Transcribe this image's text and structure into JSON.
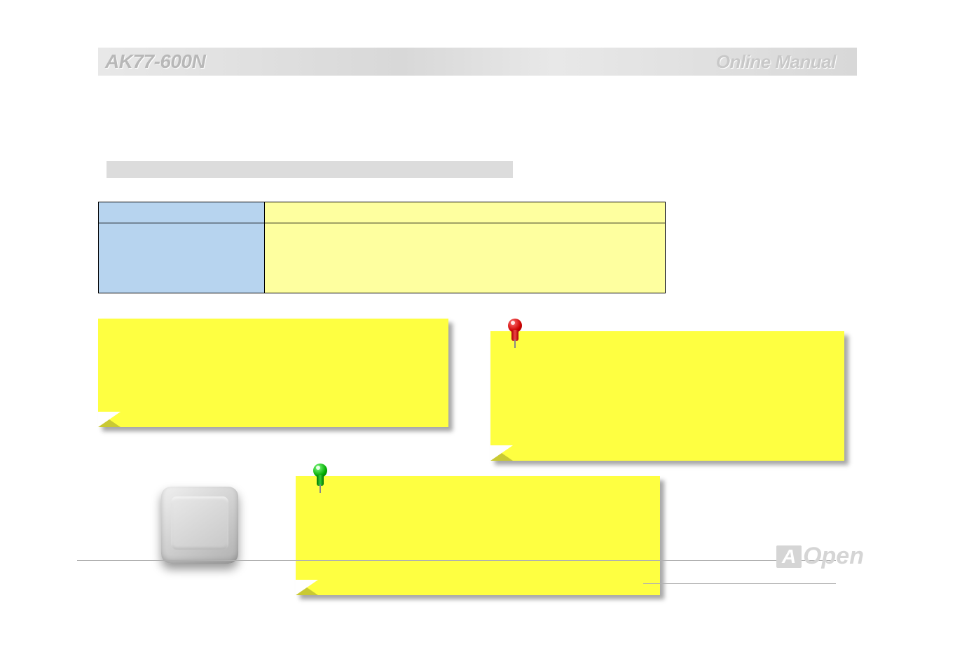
{
  "header": {
    "product_model": "AK77-600N",
    "doc_title": "Online Manual"
  },
  "colors": {
    "header_text": "#b8b8b8",
    "gray_bar": "#dcdcdc",
    "table_label_bg": "#b7d4ef",
    "table_value_bg": "#feff9f",
    "sticky_bg": "#feff41",
    "page_bg": "#ffffff"
  },
  "logo": {
    "brand_initial": "A",
    "brand_rest": "Open"
  }
}
